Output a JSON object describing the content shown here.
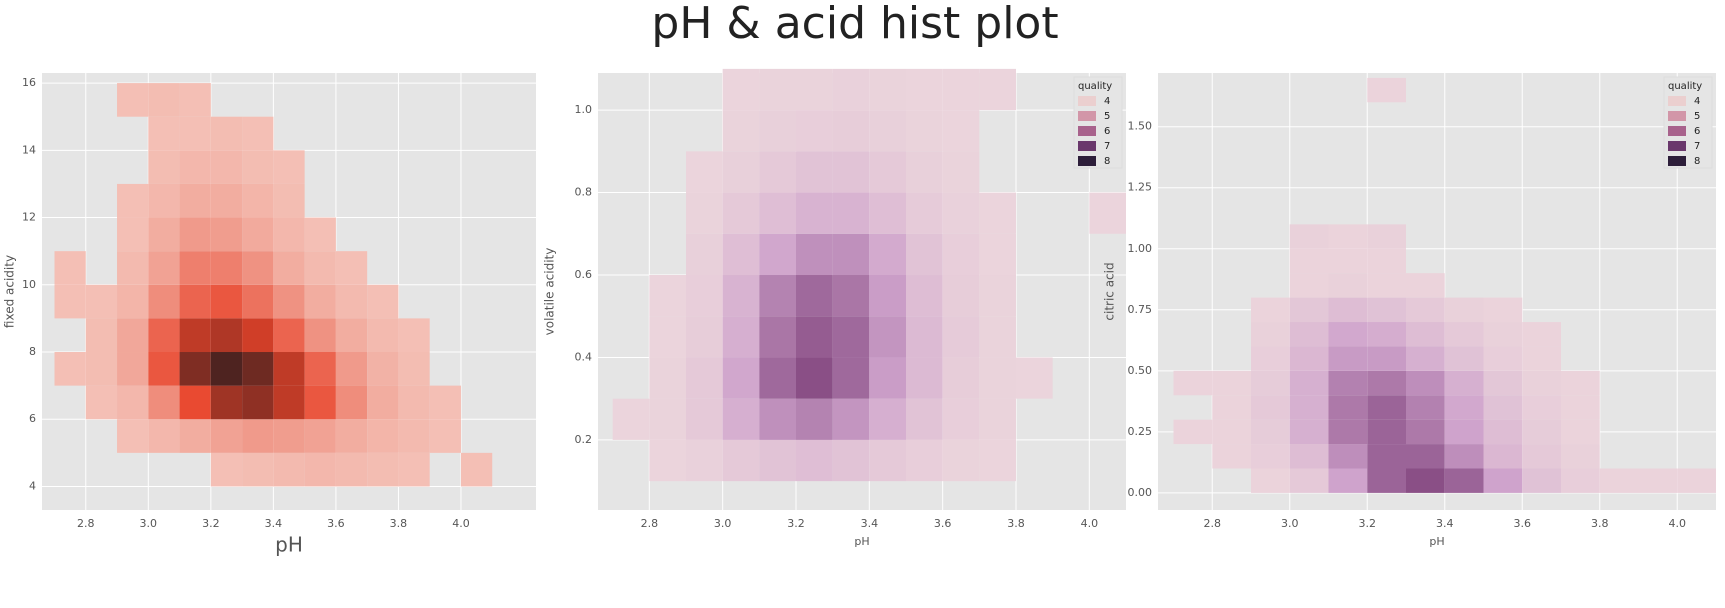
{
  "title": "pH & acid hist plot",
  "chart_data": [
    {
      "type": "hist2d",
      "xlabel": "pH",
      "ylabel": "fixed acidity",
      "grid": true,
      "cmap": [
        "#f4c2b8",
        "#e8432a",
        "#4e2320"
      ],
      "xlim": [
        2.66,
        4.24
      ],
      "ylim": [
        3.3,
        16.3
      ],
      "xticks": [
        2.8,
        {
          "value": 3,
          "label": "3.0"
        },
        3.2,
        3.4,
        3.6,
        3.8,
        {
          "value": 4,
          "label": "4.0"
        }
      ],
      "yticks": [
        4,
        6,
        8,
        10,
        12,
        14,
        16
      ],
      "xbins": [
        2.7,
        2.8,
        2.9,
        3.0,
        3.1,
        3.2,
        3.3,
        3.4,
        3.5,
        3.6,
        3.7,
        3.8,
        3.9,
        4.0,
        4.1
      ],
      "ybins": [
        4,
        5,
        6,
        7,
        8,
        9,
        10,
        11,
        12,
        13,
        14,
        15,
        16
      ],
      "counts": [
        [
          0,
          0,
          0,
          0,
          0,
          1,
          2,
          3,
          4,
          3,
          2,
          1,
          0,
          1
        ],
        [
          0,
          0,
          1,
          4,
          8,
          12,
          15,
          14,
          12,
          8,
          5,
          3,
          1,
          0
        ],
        [
          0,
          1,
          4,
          20,
          45,
          70,
          75,
          60,
          40,
          20,
          8,
          3,
          1,
          0
        ],
        [
          1,
          2,
          10,
          40,
          80,
          95,
          85,
          60,
          35,
          15,
          6,
          2,
          0,
          0
        ],
        [
          0,
          2,
          10,
          35,
          60,
          65,
          55,
          35,
          18,
          8,
          3,
          1,
          0,
          0
        ],
        [
          1,
          1,
          5,
          20,
          35,
          40,
          30,
          18,
          8,
          3,
          1,
          0,
          0,
          0
        ],
        [
          1,
          0,
          3,
          12,
          25,
          25,
          18,
          8,
          3,
          1,
          0,
          0,
          0,
          0
        ],
        [
          0,
          0,
          1,
          8,
          15,
          14,
          9,
          4,
          1,
          0,
          0,
          0,
          0,
          0
        ],
        [
          0,
          0,
          1,
          4,
          8,
          8,
          5,
          2,
          0,
          0,
          0,
          0,
          0,
          0
        ],
        [
          0,
          0,
          0,
          2,
          4,
          4,
          2,
          1,
          0,
          0,
          0,
          0,
          0,
          0
        ],
        [
          0,
          0,
          0,
          1,
          1,
          2,
          1,
          0,
          0,
          0,
          0,
          0,
          0,
          0
        ],
        [
          0,
          0,
          1,
          2,
          1,
          0,
          0,
          0,
          0,
          0,
          0,
          0,
          0,
          0
        ]
      ]
    },
    {
      "type": "hist2d",
      "xlabel": "pH",
      "ylabel": "volatile acidity",
      "grid": true,
      "cmap": [
        "#ecd6dc",
        "#cfa3cc",
        "#8a4f86"
      ],
      "xlim": [
        2.66,
        4.1
      ],
      "ylim": [
        0.03,
        1.09
      ],
      "xticks": [
        2.8,
        {
          "value": 3,
          "label": "3.0"
        },
        3.2,
        3.4,
        3.6,
        3.8,
        {
          "value": 4,
          "label": "4.0"
        }
      ],
      "yticks": [
        0.2,
        0.4,
        0.6,
        0.8,
        {
          "value": 1,
          "label": "1.0"
        }
      ],
      "xbins": [
        2.7,
        2.8,
        2.9,
        3.0,
        3.1,
        3.2,
        3.3,
        3.4,
        3.5,
        3.6,
        3.7,
        3.8,
        3.9,
        4.0,
        4.1
      ],
      "ybins": [
        0.1,
        0.2,
        0.3,
        0.4,
        0.5,
        0.6,
        0.7,
        0.8,
        0.9,
        1.0,
        1.1
      ],
      "counts": [
        [
          0,
          1,
          3,
          8,
          12,
          15,
          12,
          8,
          5,
          2,
          1,
          0,
          0,
          0
        ],
        [
          1,
          2,
          8,
          25,
          40,
          45,
          38,
          25,
          12,
          5,
          2,
          0,
          0,
          0
        ],
        [
          0,
          2,
          8,
          30,
          55,
          65,
          55,
          35,
          18,
          6,
          2,
          1,
          0,
          0
        ],
        [
          0,
          1,
          6,
          25,
          50,
          60,
          55,
          38,
          18,
          7,
          2,
          0,
          0,
          0
        ],
        [
          0,
          1,
          5,
          22,
          45,
          55,
          50,
          35,
          16,
          6,
          2,
          0,
          0,
          0
        ],
        [
          0,
          0,
          4,
          15,
          30,
          40,
          40,
          28,
          12,
          5,
          1,
          0,
          0,
          0
        ],
        [
          0,
          0,
          2,
          8,
          15,
          22,
          22,
          15,
          7,
          3,
          1,
          0,
          0,
          1
        ],
        [
          0,
          0,
          1,
          4,
          8,
          12,
          12,
          8,
          4,
          2,
          0,
          0,
          0,
          0
        ],
        [
          0,
          0,
          0,
          2,
          4,
          5,
          6,
          4,
          2,
          1,
          0,
          0,
          0,
          0
        ],
        [
          0,
          0,
          0,
          1,
          2,
          2,
          3,
          2,
          1,
          1,
          1,
          0,
          0,
          0
        ]
      ],
      "legend": {
        "title": "quality",
        "loc": "upper right",
        "entries": [
          {
            "name": "4",
            "color": "#ebcfcf"
          },
          {
            "name": "5",
            "color": "#d296a8"
          },
          {
            "name": "6",
            "color": "#a8628c"
          },
          {
            "name": "7",
            "color": "#6a386c"
          },
          {
            "name": "8",
            "color": "#2d1e3a"
          }
        ]
      }
    },
    {
      "type": "hist2d",
      "xlabel": "pH",
      "ylabel": "citric acid",
      "grid": true,
      "cmap": [
        "#ecd6dc",
        "#cfa3cc",
        "#8a4f86"
      ],
      "xlim": [
        2.66,
        4.1
      ],
      "ylim": [
        -0.07,
        1.72
      ],
      "xticks": [
        2.8,
        {
          "value": 3,
          "label": "3.0"
        },
        3.2,
        3.4,
        3.6,
        3.8,
        {
          "value": 4,
          "label": "4.0"
        }
      ],
      "yticks": [
        {
          "value": 0,
          "label": "0.00"
        },
        0.25,
        {
          "value": 0.5,
          "label": "0.50"
        },
        0.75,
        {
          "value": 1,
          "label": "1.00"
        },
        1.25,
        {
          "value": 1.5,
          "label": "1.50"
        }
      ],
      "xbins": [
        2.7,
        2.8,
        2.9,
        3.0,
        3.1,
        3.2,
        3.3,
        3.4,
        3.5,
        3.6,
        3.7,
        3.8,
        3.9,
        4.0,
        4.1
      ],
      "ybins": [
        0,
        0.1,
        0.2,
        0.3,
        0.4,
        0.5,
        0.6,
        0.7,
        0.8,
        0.9,
        1.0,
        1.1,
        1.2,
        1.3,
        1.4,
        1.5,
        1.6,
        1.7
      ],
      "counts": [
        [
          0,
          0,
          1,
          5,
          20,
          35,
          40,
          35,
          20,
          8,
          3,
          1,
          1,
          1
        ],
        [
          0,
          1,
          3,
          10,
          25,
          35,
          35,
          25,
          12,
          5,
          2,
          0,
          0,
          0
        ],
        [
          1,
          1,
          4,
          15,
          30,
          35,
          30,
          20,
          10,
          4,
          1,
          0,
          0,
          0
        ],
        [
          0,
          1,
          5,
          15,
          30,
          35,
          28,
          18,
          8,
          3,
          1,
          0,
          0,
          0
        ],
        [
          1,
          1,
          4,
          15,
          28,
          30,
          25,
          15,
          6,
          2,
          1,
          0,
          0,
          0
        ],
        [
          0,
          0,
          3,
          12,
          22,
          22,
          15,
          8,
          3,
          1,
          0,
          0,
          0,
          0
        ],
        [
          0,
          0,
          2,
          10,
          18,
          16,
          10,
          5,
          2,
          1,
          0,
          0,
          0,
          0
        ],
        [
          0,
          0,
          1,
          6,
          10,
          8,
          5,
          2,
          1,
          0,
          0,
          0,
          0,
          0
        ],
        [
          0,
          0,
          0,
          1,
          2,
          1,
          1,
          0,
          0,
          0,
          0,
          0,
          0,
          0
        ],
        [
          0,
          0,
          0,
          1,
          1,
          1,
          0,
          0,
          0,
          0,
          0,
          0,
          0,
          0
        ],
        [
          0,
          0,
          0,
          2,
          1,
          2,
          0,
          0,
          0,
          0,
          0,
          0,
          0,
          0
        ],
        [
          0,
          0,
          0,
          0,
          0,
          0,
          0,
          0,
          0,
          0,
          0,
          0,
          0,
          0
        ],
        [
          0,
          0,
          0,
          0,
          0,
          0,
          0,
          0,
          0,
          0,
          0,
          0,
          0,
          0
        ],
        [
          0,
          0,
          0,
          0,
          0,
          0,
          0,
          0,
          0,
          0,
          0,
          0,
          0,
          0
        ],
        [
          0,
          0,
          0,
          0,
          0,
          0,
          0,
          0,
          0,
          0,
          0,
          0,
          0,
          0
        ],
        [
          0,
          0,
          0,
          0,
          0,
          0,
          0,
          0,
          0,
          0,
          0,
          0,
          0,
          0
        ],
        [
          0,
          0,
          0,
          0,
          0,
          1,
          0,
          0,
          0,
          0,
          0,
          0,
          0,
          0
        ]
      ],
      "legend": {
        "title": "quality",
        "loc": "upper right",
        "entries": [
          {
            "name": "4",
            "color": "#ebcfcf"
          },
          {
            "name": "5",
            "color": "#d296a8"
          },
          {
            "name": "6",
            "color": "#a8628c"
          },
          {
            "name": "7",
            "color": "#6a386c"
          },
          {
            "name": "8",
            "color": "#2d1e3a"
          }
        ]
      }
    }
  ]
}
